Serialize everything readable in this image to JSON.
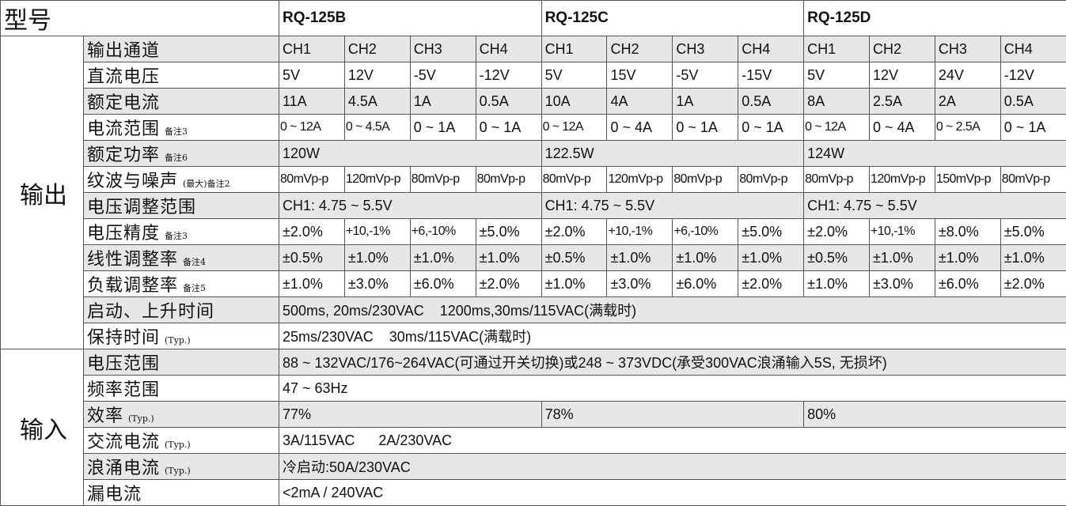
{
  "header": {
    "model_label": "型号",
    "models": [
      "RQ-125B",
      "RQ-125C",
      "RQ-125D"
    ]
  },
  "sections": [
    {
      "name": "输出",
      "rows": [
        {
          "label": "输出通道",
          "cells": [
            "CH1",
            "CH2",
            "CH3",
            "CH4",
            "CH1",
            "CH2",
            "CH3",
            "CH4",
            "CH1",
            "CH2",
            "CH3",
            "CH4"
          ]
        },
        {
          "label": "直流电压",
          "cells": [
            "5V",
            "12V",
            "-5V",
            "-12V",
            "5V",
            "15V",
            "-5V",
            "-15V",
            "5V",
            "12V",
            "24V",
            "-12V"
          ]
        },
        {
          "label": "额定电流",
          "cells": [
            "11A",
            "4.5A",
            "1A",
            "0.5A",
            "10A",
            "4A",
            "1A",
            "0.5A",
            "8A",
            "2.5A",
            "2A",
            "0.5A"
          ]
        },
        {
          "label": "电流范围",
          "note": "备注3",
          "cells": [
            "0 ~ 12A",
            "0 ~ 4.5A",
            "0 ~ 1A",
            "0 ~ 1A",
            "0 ~ 12A",
            "0 ~ 4A",
            "0 ~ 1A",
            "0 ~ 1A",
            "0 ~ 12A",
            "0 ~ 4A",
            "0 ~ 2.5A",
            "0 ~ 1A"
          ]
        },
        {
          "label": "额定功率",
          "note": "备注6",
          "cells": [
            "120W",
            "122.5W",
            "124W"
          ]
        },
        {
          "label": "纹波与噪声",
          "note": "(最大)备注2",
          "cells": [
            "80mVp-p",
            "120mVp-p",
            "80mVp-p",
            "80mVp-p",
            "80mVp-p",
            "120mVp-p",
            "80mVp-p",
            "80mVp-p",
            "80mVp-p",
            "120mVp-p",
            "150mVp-p",
            "80mVp-p"
          ]
        },
        {
          "label": "电压调整范围",
          "cells": [
            "CH1: 4.75 ~ 5.5V",
            "CH1: 4.75 ~ 5.5V",
            "CH1: 4.75 ~ 5.5V"
          ]
        },
        {
          "label": "电压精度",
          "note": "备注3",
          "cells": [
            "±2.0%",
            "+10,-1%",
            "+6,-10%",
            "±5.0%",
            "±2.0%",
            "+10,-1%",
            "+6,-10%",
            "±5.0%",
            "±2.0%",
            "+10,-1%",
            "±8.0%",
            "±5.0%"
          ]
        },
        {
          "label": "线性调整率",
          "note": "备注4",
          "cells": [
            "±0.5%",
            "±1.0%",
            "±1.0%",
            "±1.0%",
            "±0.5%",
            "±1.0%",
            "±1.0%",
            "±1.0%",
            "±0.5%",
            "±1.0%",
            "±1.0%",
            "±1.0%"
          ]
        },
        {
          "label": "负载调整率",
          "note": "备注5",
          "cells": [
            "±1.0%",
            "±3.0%",
            "±6.0%",
            "±2.0%",
            "±1.0%",
            "±3.0%",
            "±6.0%",
            "±2.0%",
            "±1.0%",
            "±3.0%",
            "±6.0%",
            "±2.0%"
          ]
        },
        {
          "label": "启动、上升时间",
          "cells": [
            "500ms, 20ms/230VAC    1200ms,30ms/115VAC(满载时)"
          ]
        },
        {
          "label": "保持时间",
          "note": "(Typ.)",
          "cells": [
            "25ms/230VAC    30ms/115VAC(满载时)"
          ]
        }
      ]
    },
    {
      "name": "输入",
      "rows": [
        {
          "label": "电压范围",
          "cells": [
            "88 ~ 132VAC/176~264VAC(可通过开关切换)或248 ~ 373VDC(承受300VAC浪涌输入5S, 无损坏)"
          ]
        },
        {
          "label": "频率范围",
          "cells": [
            "47 ~ 63Hz"
          ]
        },
        {
          "label": "效率",
          "note": "(Typ.)",
          "cells": [
            "77%",
            "78%",
            "80%"
          ]
        },
        {
          "label": "交流电流",
          "note": "(Typ.)",
          "cells": [
            "3A/115VAC      2A/230VAC"
          ]
        },
        {
          "label": "浪涌电流",
          "note": "(Typ.)",
          "cells": [
            "冷启动:50A/230VAC"
          ]
        },
        {
          "label": "漏电流",
          "cells": [
            "<2mA / 240VAC"
          ]
        }
      ]
    }
  ]
}
